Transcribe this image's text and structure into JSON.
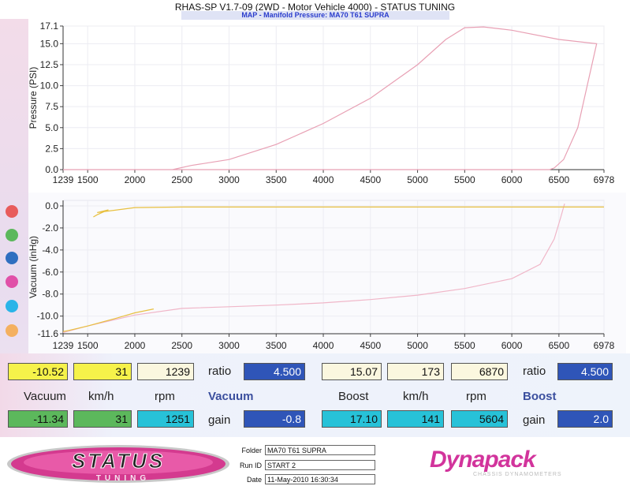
{
  "app_title": "RHAS-SP V1.7-09  (2WD - Motor Vehicle 4000) - STATUS TUNING",
  "map_subtitle": "MAP - Manifold Pressure: MA70 T61 SUPRA",
  "colors": {
    "dot1": "#e85c5c",
    "dot2": "#5cb85c",
    "dot3": "#2f6fc0",
    "dot4": "#e050a8",
    "dot5": "#2ab4e8",
    "dot6": "#f4b060",
    "pressure_line": "#e8a0b4",
    "vacuum_line": "#f0b6c8",
    "yellow_line": "#e8c040"
  },
  "chart_data": [
    {
      "type": "line",
      "ylabel": "Pressure (PSI)",
      "xlim": [
        1239,
        6978
      ],
      "ylim": [
        0,
        17.1
      ],
      "x_ticks": [
        "1239",
        "1500",
        "2000",
        "2500",
        "3000",
        "3500",
        "4000",
        "4500",
        "5000",
        "5500",
        "6000",
        "6500",
        "6978"
      ],
      "y_ticks": [
        "17.1",
        "15.0",
        "12.5",
        "10.0",
        "7.5",
        "5.0",
        "2.5",
        "0.0"
      ],
      "series": [
        {
          "x": [
            1239,
            1500,
            2000,
            2400,
            2600,
            3000,
            3500,
            4000,
            4500,
            5000,
            5300,
            5500,
            5700,
            6000,
            6500,
            6900,
            6800,
            6700,
            6550,
            6450,
            6400,
            5500,
            4000,
            3000,
            2000,
            1500
          ],
          "y": [
            0,
            0,
            0,
            0,
            0.5,
            1.2,
            3,
            5.5,
            8.5,
            12.5,
            15.5,
            16.9,
            17.0,
            16.6,
            15.5,
            15.0,
            10,
            5,
            1.2,
            0.2,
            0,
            0,
            0,
            0,
            0,
            0
          ]
        }
      ]
    },
    {
      "type": "line",
      "ylabel": "Vacuum (inHg)",
      "xlim": [
        1239,
        6978
      ],
      "ylim": [
        -11.6,
        0.5
      ],
      "x_ticks": [
        "1239",
        "1500",
        "2000",
        "2500",
        "3000",
        "3500",
        "4000",
        "4500",
        "5000",
        "5500",
        "6000",
        "6500",
        "6978"
      ],
      "y_ticks": [
        "0.0",
        "-2.0",
        "-4.0",
        "-6.0",
        "-8.0",
        "-10.0",
        "-11.6"
      ],
      "series": [
        {
          "x": [
            1239,
            1500,
            2000,
            2500,
            3000,
            3500,
            4000,
            4500,
            5000,
            5500,
            6000,
            6300,
            6450,
            6520,
            6560
          ],
          "y": [
            -11.5,
            -10.9,
            -9.9,
            -9.3,
            -9.15,
            -9.0,
            -8.8,
            -8.5,
            -8.1,
            -7.5,
            -6.6,
            -5.3,
            -3.0,
            -1.0,
            0.2
          ]
        },
        {
          "x": [
            1239,
            1300,
            1500,
            1800,
            2000,
            2200
          ],
          "y": [
            -11.4,
            -11.3,
            -10.9,
            -10.2,
            -9.7,
            -9.35
          ]
        },
        {
          "x": [
            1560,
            1600,
            1720,
            1600,
            2000,
            2500,
            3000,
            4000,
            5000,
            6000,
            6500,
            6978
          ],
          "y": [
            -1.0,
            -0.8,
            -0.35,
            -0.6,
            -0.15,
            -0.1,
            -0.1,
            -0.1,
            -0.1,
            -0.1,
            -0.1,
            -0.1
          ]
        }
      ]
    }
  ],
  "readouts": {
    "row1": {
      "v1": "-10.52",
      "v2": "31",
      "v3": "1239",
      "ratio_label": "ratio",
      "ratio1": "4.500",
      "v4": "15.07",
      "v5": "173",
      "v6": "6870",
      "ratio_label2": "ratio",
      "ratio2": "4.500"
    },
    "row2": {
      "vacuum": "Vacuum",
      "kmh": "km/h",
      "rpm": "rpm",
      "vacuum_bold": "Vacuum",
      "boost": "Boost",
      "kmh2": "km/h",
      "rpm2": "rpm",
      "boost_bold": "Boost"
    },
    "row3": {
      "v1": "-11.34",
      "v2": "31",
      "v3": "1251",
      "gain_label": "gain",
      "gain1": "-0.8",
      "v4": "17.10",
      "v5": "141",
      "v6": "5604",
      "gain_label2": "gain",
      "gain2": "2.0"
    }
  },
  "footer": {
    "logo_main": "STATUS",
    "logo_sub": "TUNING",
    "folder_label": "Folder",
    "folder_value": "MA70 T61 SUPRA",
    "runid_label": "Run ID",
    "runid_value": "START 2",
    "date_label": "Date",
    "date_value": "11-May-2010  16:30:34",
    "brand": "Dynapack",
    "brand_sub": "CHASSIS DYNAMOMETERS"
  }
}
